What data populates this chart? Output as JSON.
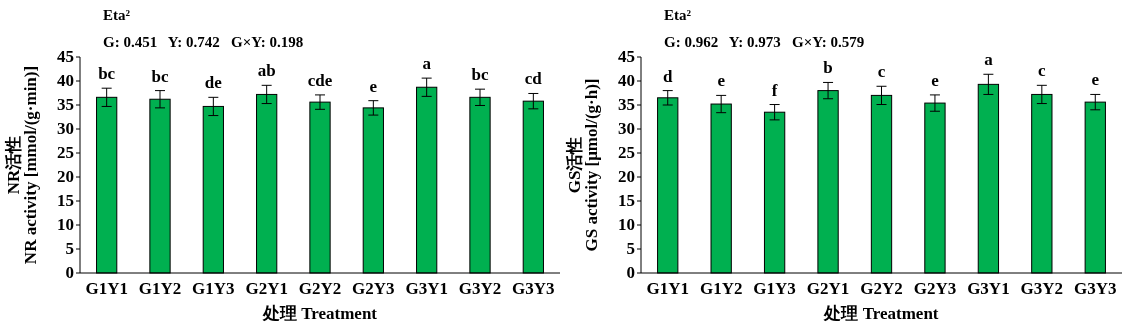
{
  "chart_data": [
    {
      "type": "bar",
      "title": "Eta²",
      "subtitle": "G: 0.451   Y: 0.742   G×Y: 0.198",
      "xlabel": "处理 Treatment",
      "ylabel": "NR活性\nNR activity [mmol/(g·min)]",
      "categories": [
        "G1Y1",
        "G1Y2",
        "G1Y3",
        "G2Y1",
        "G2Y2",
        "G2Y3",
        "G3Y1",
        "G3Y2",
        "G3Y3"
      ],
      "color": "#00b050",
      "values": [
        36.6,
        36.2,
        34.7,
        37.2,
        35.6,
        34.4,
        38.7,
        36.6,
        35.8
      ],
      "errors": [
        1.9,
        1.8,
        1.9,
        1.9,
        1.5,
        1.5,
        1.9,
        1.7,
        1.6
      ],
      "ylim": [
        0,
        45
      ],
      "yticks": [
        0,
        5,
        10,
        15,
        20,
        25,
        30,
        35,
        40,
        45
      ],
      "grid": false,
      "annotations": [
        {
          "text": "bc",
          "x": "G1Y1",
          "y": 38.5
        },
        {
          "text": "bc",
          "x": "G1Y2",
          "y": 38.0
        },
        {
          "text": "de",
          "x": "G1Y3",
          "y": 36.6
        },
        {
          "text": "ab",
          "x": "G2Y1",
          "y": 39.1
        },
        {
          "text": "cde",
          "x": "G2Y2",
          "y": 37.1
        },
        {
          "text": "e",
          "x": "G2Y3",
          "y": 35.9
        },
        {
          "text": "a",
          "x": "G3Y1",
          "y": 40.6
        },
        {
          "text": "bc",
          "x": "G3Y2",
          "y": 38.3
        },
        {
          "text": "cd",
          "x": "G3Y3",
          "y": 37.4
        }
      ]
    },
    {
      "type": "bar",
      "title": "Eta²",
      "subtitle": "G: 0.962   Y: 0.973   G×Y: 0.579",
      "xlabel": "处理 Treatment",
      "ylabel": "GS活性\nGS activity [μmol/(g·h)]",
      "categories": [
        "G1Y1",
        "G1Y2",
        "G1Y3",
        "G2Y1",
        "G2Y2",
        "G2Y3",
        "G3Y1",
        "G3Y2",
        "G3Y3"
      ],
      "color": "#00b050",
      "values": [
        36.5,
        35.2,
        33.5,
        38.0,
        37.0,
        35.4,
        39.3,
        37.2,
        35.6
      ],
      "errors": [
        1.5,
        1.8,
        1.6,
        1.7,
        1.9,
        1.7,
        2.1,
        1.9,
        1.6
      ],
      "ylim": [
        0,
        45
      ],
      "yticks": [
        0,
        5,
        10,
        15,
        20,
        25,
        30,
        35,
        40,
        45
      ],
      "grid": false,
      "annotations": [
        {
          "text": "d",
          "x": "G1Y1",
          "y": 38.0
        },
        {
          "text": "e",
          "x": "G1Y2",
          "y": 37.0
        },
        {
          "text": "f",
          "x": "G1Y3",
          "y": 35.1
        },
        {
          "text": "b",
          "x": "G2Y1",
          "y": 39.7
        },
        {
          "text": "c",
          "x": "G2Y2",
          "y": 38.9
        },
        {
          "text": "e",
          "x": "G2Y3",
          "y": 37.1
        },
        {
          "text": "a",
          "x": "G3Y1",
          "y": 41.4
        },
        {
          "text": "c",
          "x": "G3Y2",
          "y": 39.1
        },
        {
          "text": "e",
          "x": "G3Y3",
          "y": 37.2
        }
      ]
    }
  ]
}
